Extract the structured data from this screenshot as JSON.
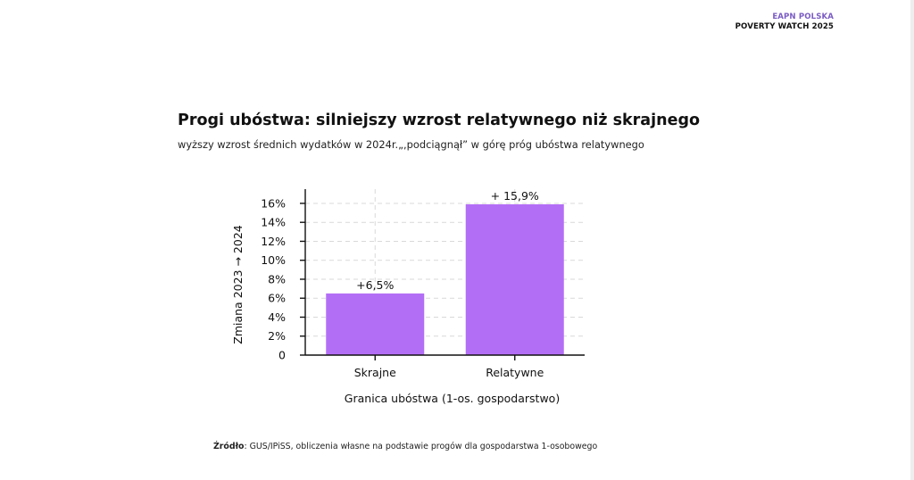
{
  "header": {
    "org": "EAPN POLSKA",
    "report": "POVERTY WATCH 2025"
  },
  "title": "Progi ubóstwa: silniejszy wzrost relatywnego niż skrajnego",
  "subtitle": "wyższy wzrost średnich wydatków w 2024r.„,podciągnął” w górę próg ubóstwa relatywnego",
  "source": {
    "label": "Źródło",
    "text": ": GUS/IPiSS, obliczenia własne na podstawie progów dla gospodarstwa 1-osobowego"
  },
  "colors": {
    "bar": "#b36ef6",
    "grid": "#d9d9d9",
    "axis": "#111111",
    "org": "#7b5cc4"
  },
  "chart_data": {
    "type": "bar",
    "categories": [
      "Skrajne",
      "Relatywne"
    ],
    "values": [
      6.5,
      15.9
    ],
    "data_labels": [
      "+6,5%",
      "+ 15,9%"
    ],
    "xlabel": "Granica ubóstwa (1-os. gospodarstwo)",
    "ylabel": "Zmiana 2023 → 2024",
    "ylim": [
      0,
      17.5
    ],
    "yticks": [
      0,
      2,
      4,
      6,
      8,
      10,
      12,
      14,
      16
    ],
    "ytick_labels": [
      "0",
      "2%",
      "4%",
      "6%",
      "8%",
      "10%",
      "12%",
      "14%",
      "16%"
    ],
    "grid": true
  }
}
